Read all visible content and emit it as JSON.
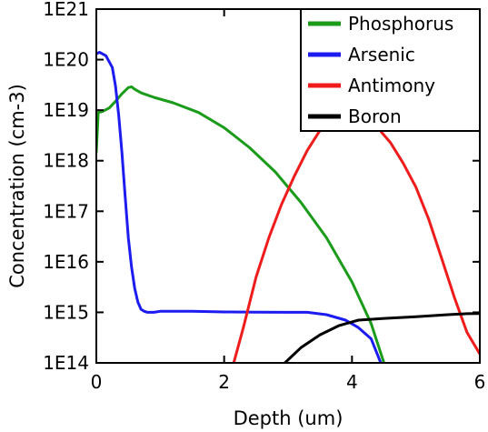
{
  "chart_data": {
    "type": "line",
    "xlabel": "Depth (um)",
    "ylabel": "Concentration (cm-3)",
    "xlim": [
      0,
      6
    ],
    "ylim_log10": [
      14,
      21
    ],
    "y_scale": "log",
    "x_ticks": [
      0,
      2,
      4,
      6
    ],
    "x_tick_labels": [
      "0",
      "2",
      "4",
      "6"
    ],
    "y_ticks_log10": [
      14,
      15,
      16,
      17,
      18,
      19,
      20,
      21
    ],
    "y_tick_labels": [
      "1E14",
      "1E15",
      "1E16",
      "1E17",
      "1E18",
      "1E19",
      "1E20",
      "1E21"
    ],
    "grid": false,
    "legend_position": "top-right",
    "series": [
      {
        "name": "Phosphorus",
        "color": "#1a9b1a",
        "x": [
          0.0,
          0.03,
          0.1,
          0.2,
          0.3,
          0.4,
          0.5,
          0.55,
          0.6,
          0.7,
          0.9,
          1.2,
          1.6,
          2.0,
          2.4,
          2.8,
          3.2,
          3.6,
          4.0,
          4.3,
          4.5
        ],
        "y": [
          1.5e+18,
          9e+18,
          9.5e+18,
          1.1e+19,
          1.5e+19,
          2.1e+19,
          2.8e+19,
          2.9e+19,
          2.6e+19,
          2.2e+19,
          1.8e+19,
          1.4e+19,
          9e+18,
          4.5e+18,
          1.8e+18,
          6e+17,
          1.5e+17,
          3e+16,
          4000000000000000.0,
          600000000000000.0,
          100000000000000.0
        ]
      },
      {
        "name": "Arsenic",
        "color": "#1c1cf0",
        "x": [
          0.0,
          0.05,
          0.15,
          0.25,
          0.3,
          0.35,
          0.4,
          0.45,
          0.5,
          0.55,
          0.6,
          0.65,
          0.7,
          0.75,
          0.8,
          0.85,
          0.9,
          1.0,
          1.5,
          2.0,
          2.5,
          3.0,
          3.3,
          3.6,
          3.9,
          4.1,
          4.3,
          4.45
        ],
        "y": [
          1.3e+20,
          1.4e+20,
          1.2e+20,
          7e+19,
          3e+19,
          8e+18,
          1.5e+18,
          2e+17,
          3e+16,
          8000000000000000.0,
          3000000000000000.0,
          1600000000000000.0,
          1150000000000000.0,
          1050000000000000.0,
          1000000000000000.0,
          1000000000000000.0,
          1000000000000000.0,
          1050000000000000.0,
          1050000000000000.0,
          1020000000000000.0,
          1010000000000000.0,
          1000000000000000.0,
          1000000000000000.0,
          900000000000000.0,
          700000000000000.0,
          500000000000000.0,
          300000000000000.0,
          100000000000000.0
        ]
      },
      {
        "name": "Antimony",
        "color": "#ef1c1c",
        "x": [
          2.15,
          2.3,
          2.5,
          2.7,
          2.9,
          3.1,
          3.3,
          3.5,
          3.7,
          3.8,
          4.0,
          4.2,
          4.4,
          4.6,
          4.8,
          5.0,
          5.2,
          5.4,
          5.6,
          5.8,
          6.0
        ],
        "y": [
          100000000000000.0,
          500000000000000.0,
          5000000000000000.0,
          3e+16,
          1.4e+17,
          5e+17,
          1.6e+18,
          4e+18,
          7e+18,
          7.5e+18,
          8e+18,
          7e+18,
          4.5e+18,
          2.3e+18,
          9e+17,
          3e+17,
          7e+16,
          1.2e+16,
          2000000000000000.0,
          400000000000000.0,
          150000000000000.0
        ]
      },
      {
        "name": "Boron",
        "color": "#000000",
        "x": [
          2.95,
          3.2,
          3.5,
          3.8,
          4.1,
          4.5,
          5.0,
          5.5,
          5.8,
          6.0
        ],
        "y": [
          100000000000000.0,
          200000000000000.0,
          360000000000000.0,
          550000000000000.0,
          700000000000000.0,
          760000000000000.0,
          820000000000000.0,
          900000000000000.0,
          940000000000000.0,
          950000000000000.0
        ]
      }
    ]
  }
}
